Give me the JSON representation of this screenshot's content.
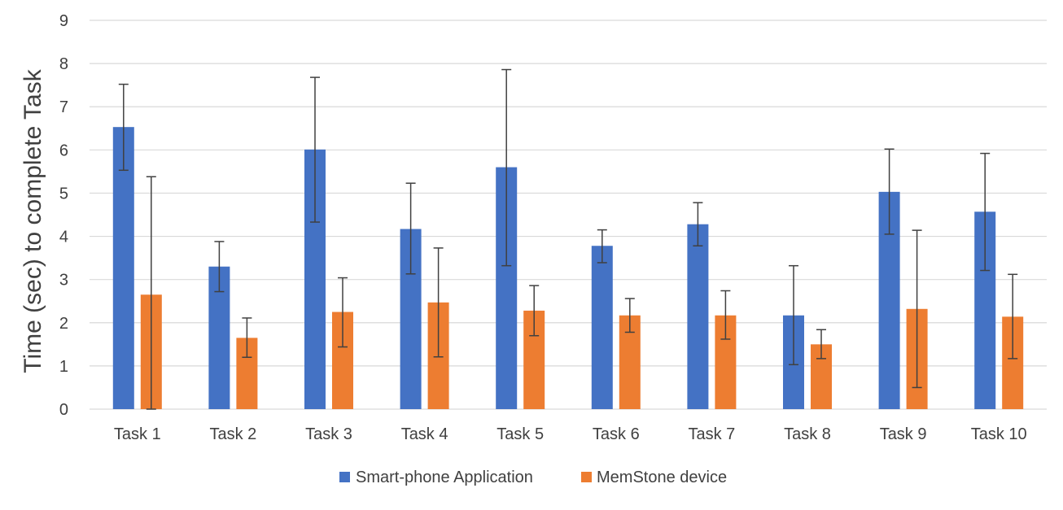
{
  "chart_data": {
    "type": "bar",
    "ylabel": "Time (sec) to complete Task",
    "xlabel": "",
    "ylim": [
      0,
      9
    ],
    "yticks": [
      0,
      1,
      2,
      3,
      4,
      5,
      6,
      7,
      8,
      9
    ],
    "grid": true,
    "legend_position": "bottom",
    "categories": [
      "Task 1",
      "Task 2",
      "Task 3",
      "Task 4",
      "Task 5",
      "Task 6",
      "Task 7",
      "Task 8",
      "Task 9",
      "Task 10"
    ],
    "series": [
      {
        "name": "Smart-phone Application",
        "color": "#4472C4",
        "values": [
          6.53,
          3.3,
          6.01,
          4.17,
          5.6,
          3.78,
          4.28,
          2.17,
          5.03,
          4.57
        ],
        "error_low": [
          5.53,
          2.72,
          4.33,
          3.13,
          3.32,
          3.39,
          3.78,
          1.03,
          4.05,
          3.21
        ],
        "error_high": [
          7.52,
          3.88,
          7.68,
          5.23,
          7.86,
          4.15,
          4.78,
          3.32,
          6.02,
          5.92
        ]
      },
      {
        "name": "MemStone device",
        "color": "#ED7D31",
        "values": [
          2.65,
          1.65,
          2.25,
          2.47,
          2.28,
          2.17,
          2.17,
          1.5,
          2.32,
          2.14
        ],
        "error_low": [
          0,
          1.2,
          1.44,
          1.21,
          1.7,
          1.78,
          1.62,
          1.17,
          0.5,
          1.17
        ],
        "error_high": [
          5.38,
          2.11,
          3.04,
          3.73,
          2.86,
          2.56,
          2.74,
          1.84,
          4.14,
          3.12
        ]
      }
    ]
  }
}
